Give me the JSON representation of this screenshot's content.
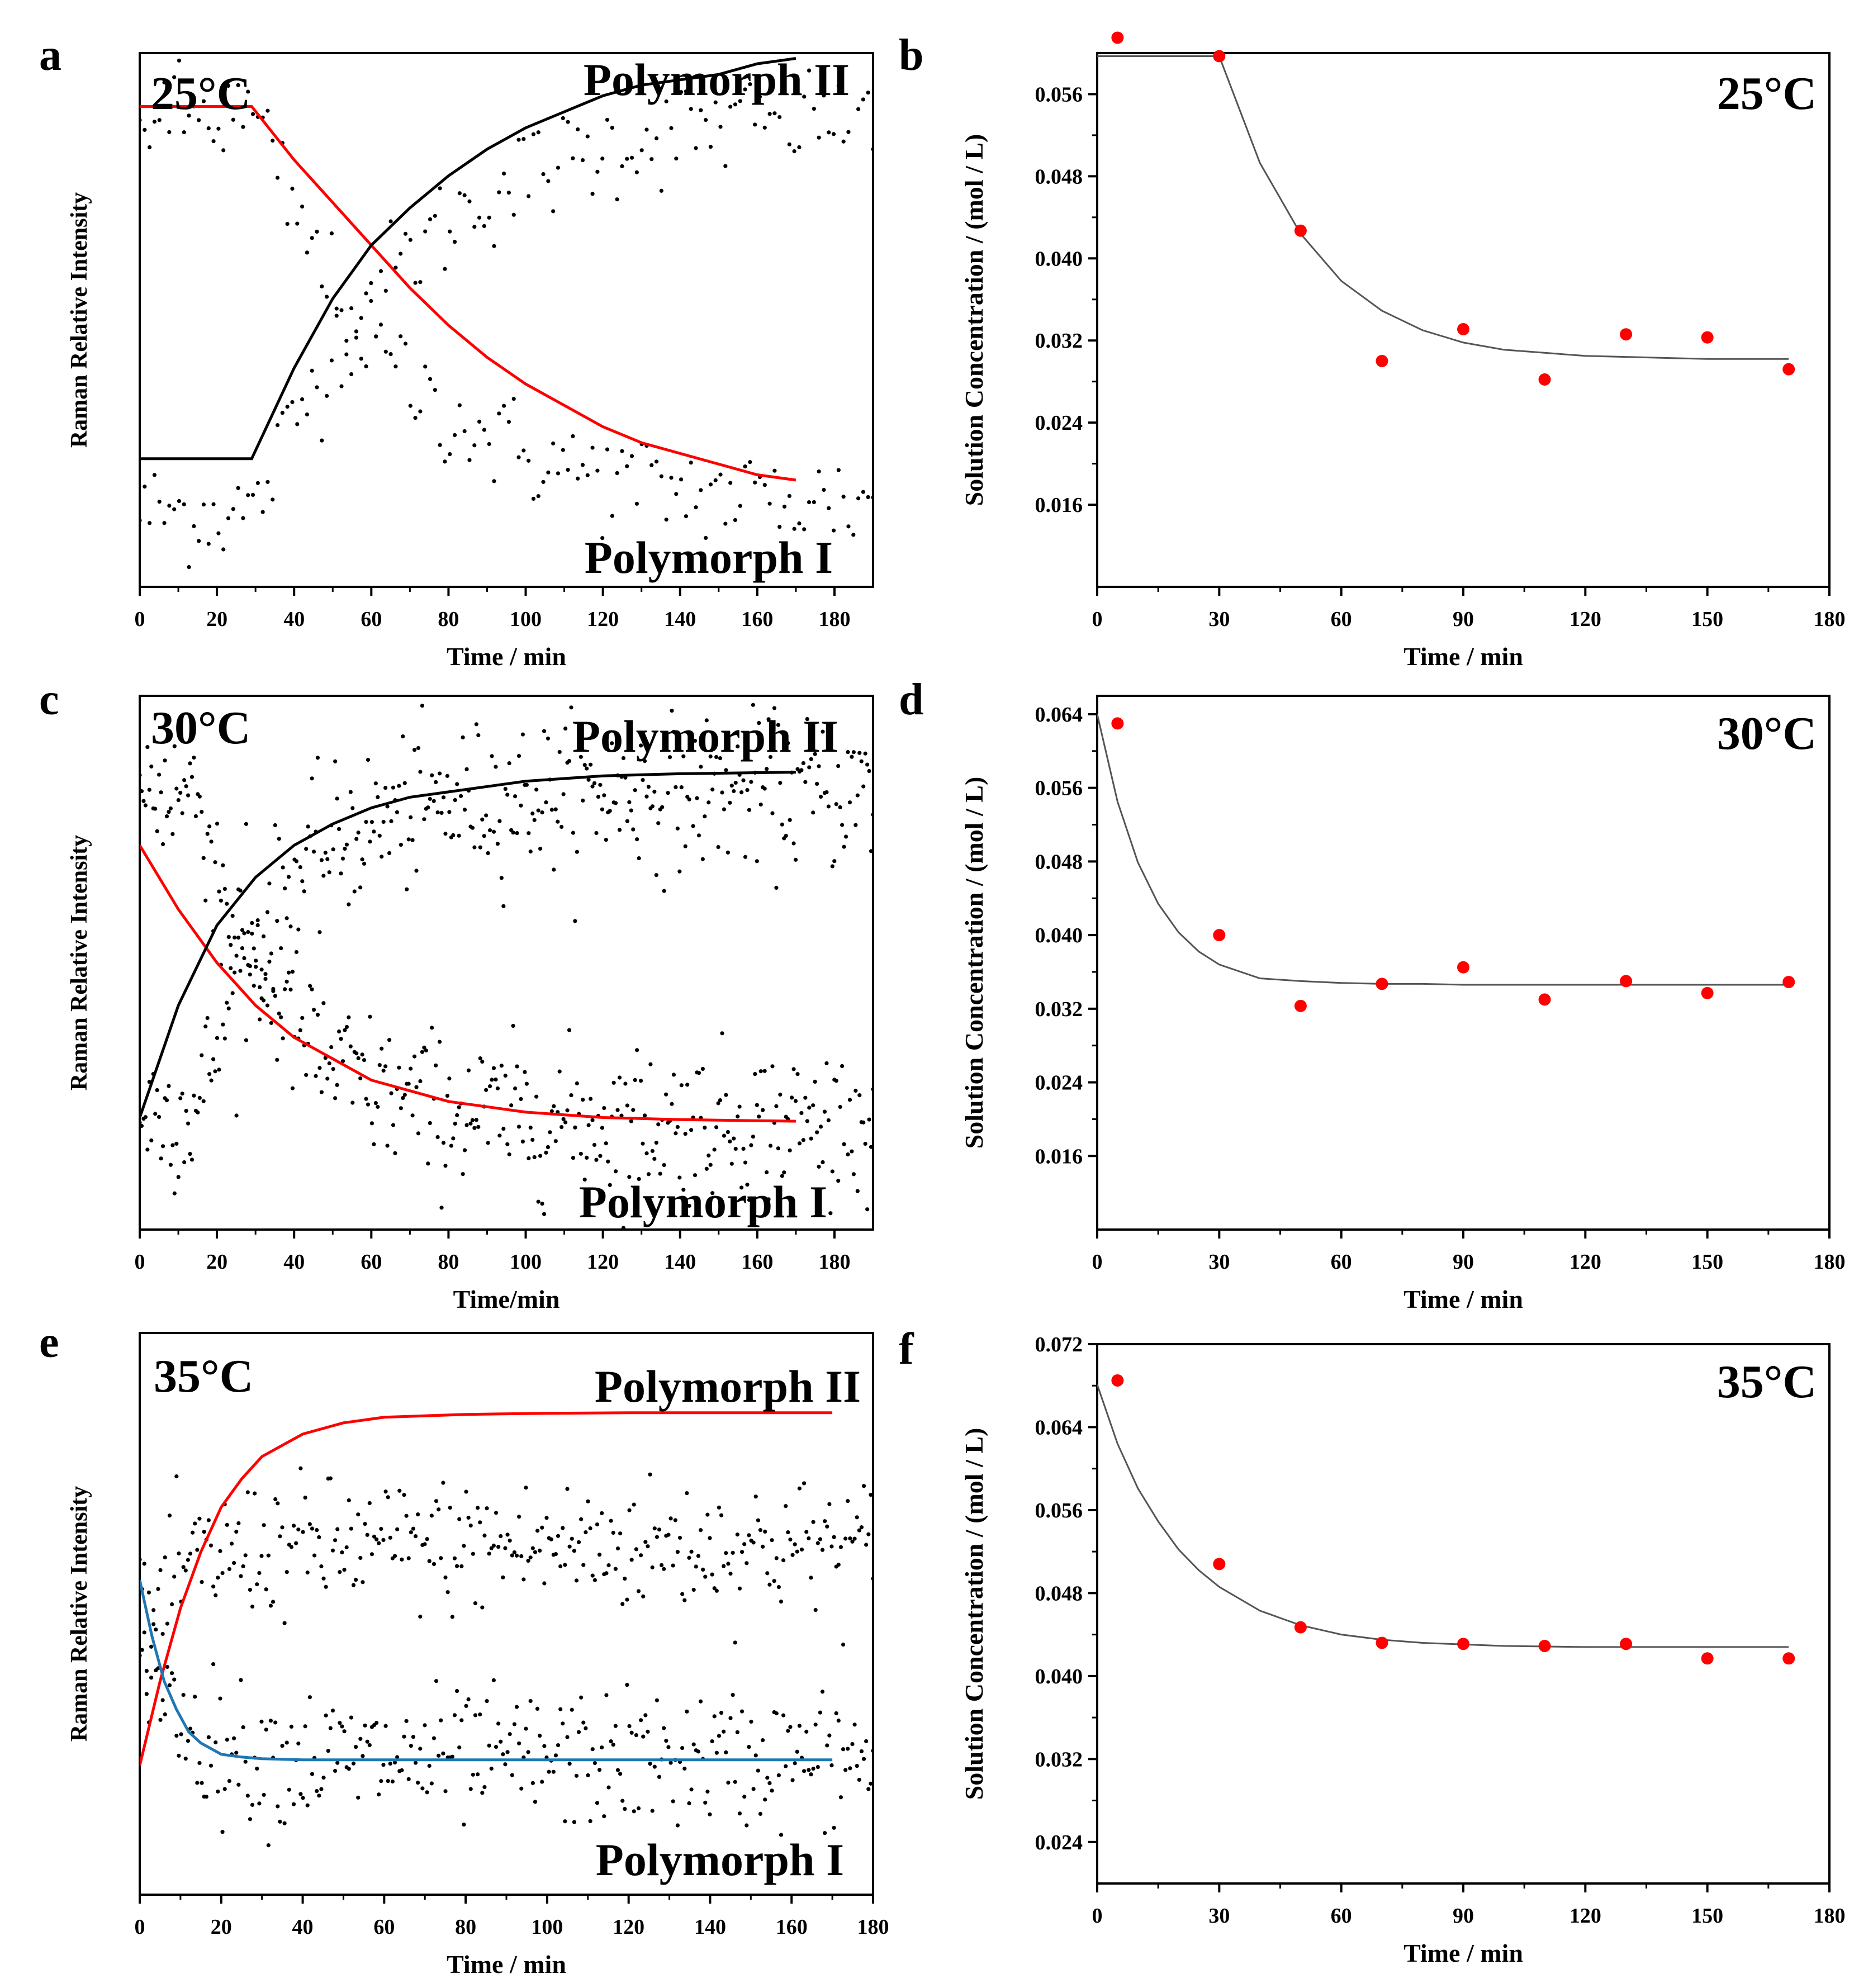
{
  "chart_data": [
    {
      "id": "a",
      "panel_letter": "a",
      "type": "scatter",
      "temperature_label": "25°C",
      "label_top": "Polymorph II",
      "label_bottom": "Polymorph I",
      "xlabel": "Time / min",
      "ylabel": "Raman Relative Intensity",
      "xlim": [
        0,
        190
      ],
      "ylim": [
        0,
        1
      ],
      "xticks": [
        0,
        20,
        40,
        60,
        80,
        100,
        120,
        140,
        160,
        180
      ],
      "yticks": [],
      "series": [
        {
          "name": "Polymorph I fit",
          "color": "#ff0000",
          "x": [
            0,
            10,
            20,
            29,
            40,
            50,
            60,
            70,
            80,
            90,
            100,
            110,
            120,
            130,
            140,
            150,
            160,
            170
          ],
          "y": [
            0.9,
            0.9,
            0.9,
            0.9,
            0.8,
            0.72,
            0.64,
            0.56,
            0.49,
            0.43,
            0.38,
            0.34,
            0.3,
            0.27,
            0.25,
            0.23,
            0.21,
            0.2
          ]
        },
        {
          "name": "Polymorph II fit",
          "color": "#000000",
          "x": [
            0,
            10,
            20,
            29,
            40,
            50,
            60,
            70,
            80,
            90,
            100,
            110,
            120,
            130,
            140,
            150,
            160,
            170
          ],
          "y": [
            0.24,
            0.24,
            0.24,
            0.24,
            0.41,
            0.54,
            0.64,
            0.71,
            0.77,
            0.82,
            0.86,
            0.89,
            0.92,
            0.94,
            0.95,
            0.96,
            0.98,
            0.99
          ]
        }
      ],
      "scatter": [
        {
          "name": "Polymorph II data",
          "color": "#000000",
          "baseline": 0.88,
          "rise_start": 30,
          "tau": 40,
          "plateau": 0.9,
          "count": 150,
          "spread": 0.05,
          "fromLow": 0.14
        },
        {
          "name": "Polymorph I data",
          "color": "#000000",
          "baseline": 0.14,
          "rise_start": 30,
          "tau": 35,
          "plateau": 0.15,
          "count": 150,
          "spread": 0.05,
          "fromHigh": 0.88
        }
      ]
    },
    {
      "id": "b",
      "panel_letter": "b",
      "type": "scatter",
      "temperature_label": "25°C",
      "xlabel": "Time / min",
      "ylabel": "Solution Concentration / (mol / L)",
      "xlim": [
        0,
        180
      ],
      "ylim": [
        0.008,
        0.06
      ],
      "xticks": [
        0,
        30,
        60,
        90,
        120,
        150,
        180
      ],
      "yticks": [
        0.016,
        0.024,
        0.032,
        0.04,
        0.048,
        0.056
      ],
      "points": {
        "x": [
          5,
          30,
          50,
          70,
          90,
          110,
          130,
          150,
          170
        ],
        "y": [
          0.0615,
          0.0597,
          0.0427,
          0.03,
          0.0331,
          0.0282,
          0.0326,
          0.0323,
          0.0292
        ]
      },
      "fit": {
        "x": [
          0,
          30,
          40,
          50,
          60,
          70,
          80,
          90,
          100,
          110,
          120,
          130,
          140,
          150,
          160,
          170
        ],
        "y": [
          0.0597,
          0.0597,
          0.0493,
          0.0424,
          0.0378,
          0.0349,
          0.033,
          0.0318,
          0.0311,
          0.0308,
          0.0305,
          0.0304,
          0.0303,
          0.0302,
          0.0302,
          0.0302
        ]
      }
    },
    {
      "id": "c",
      "panel_letter": "c",
      "type": "scatter",
      "temperature_label": "30°C",
      "label_top": "Polymorph II",
      "label_bottom": "Polymorph I",
      "xlabel": "Time/min",
      "ylabel": "Raman Relative Intensity",
      "xlim": [
        0,
        190
      ],
      "ylim": [
        0,
        1
      ],
      "xticks": [
        0,
        20,
        40,
        60,
        80,
        100,
        120,
        140,
        160,
        180
      ],
      "yticks": [],
      "series": [
        {
          "name": "Polymorph I fit",
          "color": "#ff0000",
          "x": [
            0,
            10,
            20,
            30,
            40,
            50,
            60,
            70,
            80,
            90,
            100,
            110,
            120,
            130,
            140,
            150,
            160,
            170
          ],
          "y": [
            0.72,
            0.6,
            0.5,
            0.42,
            0.36,
            0.32,
            0.28,
            0.26,
            0.24,
            0.23,
            0.22,
            0.215,
            0.21,
            0.208,
            0.206,
            0.205,
            0.204,
            0.203
          ]
        },
        {
          "name": "Polymorph II fit",
          "color": "#000000",
          "x": [
            0,
            10,
            20,
            30,
            40,
            50,
            60,
            70,
            80,
            90,
            100,
            110,
            120,
            130,
            140,
            150,
            160,
            170
          ],
          "y": [
            0.21,
            0.42,
            0.57,
            0.66,
            0.72,
            0.76,
            0.79,
            0.81,
            0.82,
            0.83,
            0.84,
            0.845,
            0.85,
            0.852,
            0.854,
            0.855,
            0.856,
            0.857
          ]
        }
      ],
      "scatter": [
        {
          "name": "Polymorph II data",
          "color": "#000000",
          "baseline": 0.82,
          "rise_start": 15,
          "tau": 20,
          "plateau": 0.82,
          "count": 380,
          "spread": 0.07,
          "fromLow": 0.22
        },
        {
          "name": "Polymorph I data",
          "color": "#000000",
          "baseline": 0.2,
          "rise_start": 15,
          "tau": 20,
          "plateau": 0.2,
          "count": 380,
          "spread": 0.07,
          "fromHigh": 0.82
        }
      ]
    },
    {
      "id": "d",
      "panel_letter": "d",
      "type": "scatter",
      "temperature_label": "30°C",
      "xlabel": "Time / min",
      "ylabel": "Solution Concentration / (mol / L)",
      "xlim": [
        0,
        180
      ],
      "ylim": [
        0.008,
        0.066
      ],
      "xticks": [
        0,
        30,
        60,
        90,
        120,
        150,
        180
      ],
      "yticks": [
        0.016,
        0.024,
        0.032,
        0.04,
        0.048,
        0.056,
        0.064
      ],
      "points": {
        "x": [
          5,
          30,
          50,
          70,
          90,
          110,
          130,
          150,
          170
        ],
        "y": [
          0.063,
          0.04,
          0.0323,
          0.0347,
          0.0365,
          0.033,
          0.035,
          0.0337,
          0.0349
        ]
      },
      "fit": {
        "x": [
          0,
          5,
          10,
          15,
          20,
          25,
          30,
          40,
          50,
          60,
          70,
          80,
          90,
          100,
          120,
          140,
          160,
          170
        ],
        "y": [
          0.064,
          0.0545,
          0.0479,
          0.0434,
          0.0403,
          0.0382,
          0.0368,
          0.0353,
          0.035,
          0.0348,
          0.0347,
          0.0347,
          0.0346,
          0.0346,
          0.0346,
          0.0346,
          0.0346,
          0.0346
        ]
      }
    },
    {
      "id": "e",
      "panel_letter": "e",
      "type": "scatter",
      "temperature_label": "35°C",
      "label_top": "Polymorph II",
      "label_bottom": "Polymorph I",
      "xlabel": "Time / min",
      "ylabel": "Raman Relative Intensity",
      "xlim": [
        0,
        180
      ],
      "ylim": [
        0,
        1
      ],
      "xticks": [
        0,
        20,
        40,
        60,
        80,
        100,
        120,
        140,
        160,
        180
      ],
      "yticks": [],
      "series": [
        {
          "name": "Polymorph II fit",
          "color": "#ff0000",
          "x": [
            0,
            5,
            10,
            15,
            20,
            25,
            30,
            40,
            50,
            60,
            80,
            100,
            120,
            140,
            160,
            170
          ],
          "y": [
            0.23,
            0.38,
            0.51,
            0.61,
            0.69,
            0.74,
            0.78,
            0.82,
            0.84,
            0.85,
            0.855,
            0.857,
            0.858,
            0.858,
            0.858,
            0.858
          ]
        },
        {
          "name": "Polymorph I fit",
          "color": "#1f77b4",
          "x": [
            0,
            3,
            6,
            9,
            12,
            15,
            20,
            25,
            30,
            40,
            60,
            100,
            140,
            170
          ],
          "y": [
            0.56,
            0.46,
            0.38,
            0.33,
            0.29,
            0.27,
            0.25,
            0.245,
            0.242,
            0.24,
            0.24,
            0.24,
            0.24,
            0.24
          ]
        }
      ],
      "scatter": [
        {
          "name": "Polymorph II data",
          "color": "#000000",
          "baseline": 0.6,
          "rise_start": 0,
          "tau": 8,
          "plateau": 0.62,
          "count": 320,
          "spread": 0.06,
          "fromLow": 0.42
        },
        {
          "name": "Polymorph I data",
          "color": "#000000",
          "baseline": 0.24,
          "rise_start": 0,
          "tau": 8,
          "plateau": 0.24,
          "count": 320,
          "spread": 0.06,
          "fromHigh": 0.5
        }
      ]
    },
    {
      "id": "f",
      "panel_letter": "f",
      "type": "scatter",
      "temperature_label": "35°C",
      "xlabel": "Time / min",
      "ylabel": "Solution Concentration / (mol / L)",
      "xlim": [
        0,
        180
      ],
      "ylim": [
        0.02,
        0.072
      ],
      "xticks": [
        0,
        30,
        60,
        90,
        120,
        150,
        180
      ],
      "yticks": [
        0.024,
        0.032,
        0.04,
        0.048,
        0.056,
        0.064,
        0.072
      ],
      "points": {
        "x": [
          5,
          30,
          50,
          70,
          90,
          110,
          130,
          150,
          170
        ],
        "y": [
          0.0685,
          0.0508,
          0.0447,
          0.0432,
          0.0431,
          0.0429,
          0.0431,
          0.0417,
          0.0417
        ]
      },
      "fit": {
        "x": [
          0,
          5,
          10,
          15,
          20,
          25,
          30,
          40,
          50,
          60,
          70,
          80,
          100,
          120,
          140,
          160,
          170
        ],
        "y": [
          0.0681,
          0.0624,
          0.0581,
          0.0549,
          0.0522,
          0.0502,
          0.0486,
          0.0463,
          0.0449,
          0.044,
          0.0435,
          0.0432,
          0.0429,
          0.0428,
          0.0428,
          0.0428,
          0.0428
        ]
      }
    }
  ]
}
